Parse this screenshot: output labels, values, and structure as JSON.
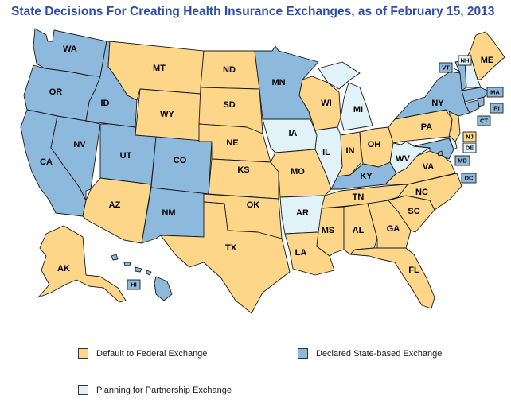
{
  "title": "State Decisions For Creating Health Insurance Exchanges, as of February 15, 2013",
  "colors": {
    "federal": "#fdd68a",
    "state": "#8db9dc",
    "partnership": "#e2f2f9"
  },
  "legend": [
    {
      "key": "federal",
      "label": "Default to Federal Exchange"
    },
    {
      "key": "state",
      "label": "Declared State-based Exchange"
    },
    {
      "key": "partnership",
      "label": "Planning for Partnership Exchange"
    }
  ],
  "states": {
    "WA": "state",
    "OR": "state",
    "CA": "state",
    "NV": "state",
    "ID": "state",
    "UT": "state",
    "CO": "state",
    "NM": "state",
    "MN": "state",
    "KY": "state",
    "NY": "state",
    "MD": "state",
    "HI": "state",
    "VT": "state",
    "MA": "state",
    "RI": "state",
    "CT": "state",
    "DC": "state",
    "IA": "partnership",
    "IL": "partnership",
    "MI": "partnership",
    "WV": "partnership",
    "DE": "partnership",
    "NH": "partnership",
    "AR": "partnership",
    "MT": "federal",
    "WY": "federal",
    "ND": "federal",
    "SD": "federal",
    "NE": "federal",
    "KS": "federal",
    "OK": "federal",
    "TX": "federal",
    "AZ": "federal",
    "MO": "federal",
    "LA": "federal",
    "MS": "federal",
    "AL": "federal",
    "GA": "federal",
    "FL": "federal",
    "SC": "federal",
    "NC": "federal",
    "TN": "federal",
    "VA": "federal",
    "IN": "federal",
    "OH": "federal",
    "PA": "federal",
    "WI": "federal",
    "ME": "federal",
    "NJ": "federal",
    "AK": "federal"
  }
}
